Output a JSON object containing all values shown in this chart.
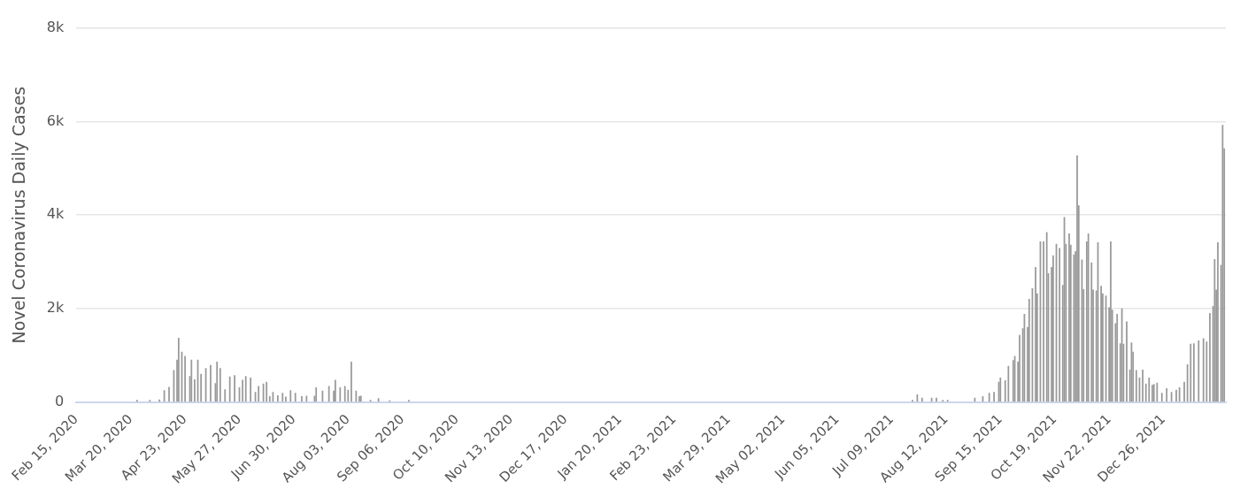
{
  "chart_data": {
    "type": "bar",
    "ylabel": "Novel Coronavirus Daily Cases",
    "color": "#999999",
    "grid": "y",
    "legend": false,
    "xlim": [
      "2020-02-15",
      "2022-02-03"
    ],
    "xticks": [
      {
        "value": "2020-02-15",
        "label": "Feb 15, 2020"
      },
      {
        "value": "2020-03-20",
        "label": "Mar 20, 2020"
      },
      {
        "value": "2020-04-23",
        "label": "Apr 23, 2020"
      },
      {
        "value": "2020-05-27",
        "label": "May 27, 2020"
      },
      {
        "value": "2020-06-30",
        "label": "Jun 30, 2020"
      },
      {
        "value": "2020-08-03",
        "label": "Aug 03, 2020"
      },
      {
        "value": "2020-09-06",
        "label": "Sep 06, 2020"
      },
      {
        "value": "2020-10-10",
        "label": "Oct 10, 2020"
      },
      {
        "value": "2020-11-13",
        "label": "Nov 13, 2020"
      },
      {
        "value": "2020-12-17",
        "label": "Dec 17, 2020"
      },
      {
        "value": "2021-01-20",
        "label": "Jan 20, 2021"
      },
      {
        "value": "2021-02-23",
        "label": "Feb 23, 2021"
      },
      {
        "value": "2021-03-29",
        "label": "Mar 29, 2021"
      },
      {
        "value": "2021-05-02",
        "label": "May 02, 2021"
      },
      {
        "value": "2021-06-05",
        "label": "Jun 05, 2021"
      },
      {
        "value": "2021-07-09",
        "label": "Jul 09, 2021"
      },
      {
        "value": "2021-08-12",
        "label": "Aug 12, 2021"
      },
      {
        "value": "2021-09-15",
        "label": "Sep 15, 2021"
      },
      {
        "value": "2021-10-19",
        "label": "Oct 19, 2021"
      },
      {
        "value": "2021-11-22",
        "label": "Nov 22, 2021"
      },
      {
        "value": "2021-12-26",
        "label": "Dec 26, 2021"
      }
    ],
    "ylim": [
      0,
      8000
    ],
    "yticks": [
      {
        "value": 0,
        "label": "0"
      },
      {
        "value": 2000,
        "label": "2k"
      },
      {
        "value": 4000,
        "label": "4k"
      },
      {
        "value": 6000,
        "label": "6k"
      },
      {
        "value": 8000,
        "label": "8k"
      }
    ],
    "x": [
      "2020-03-24",
      "2020-04-01",
      "2020-04-07",
      "2020-04-10",
      "2020-04-13",
      "2020-04-16",
      "2020-04-18",
      "2020-04-19",
      "2020-04-21",
      "2020-04-23",
      "2020-04-26",
      "2020-04-27",
      "2020-04-29",
      "2020-05-01",
      "2020-05-03",
      "2020-05-06",
      "2020-05-09",
      "2020-05-12",
      "2020-05-13",
      "2020-05-15",
      "2020-05-18",
      "2020-05-21",
      "2020-05-24",
      "2020-05-27",
      "2020-05-29",
      "2020-05-31",
      "2020-06-03",
      "2020-06-06",
      "2020-06-08",
      "2020-06-11",
      "2020-06-13",
      "2020-06-15",
      "2020-06-17",
      "2020-06-20",
      "2020-06-23",
      "2020-06-25",
      "2020-06-28",
      "2020-07-01",
      "2020-07-05",
      "2020-07-08",
      "2020-07-13",
      "2020-07-14",
      "2020-07-18",
      "2020-07-22",
      "2020-07-25",
      "2020-07-26",
      "2020-07-29",
      "2020-08-01",
      "2020-08-03",
      "2020-08-05",
      "2020-08-08",
      "2020-08-10",
      "2020-08-11",
      "2020-08-17",
      "2020-08-22",
      "2020-08-29",
      "2020-09-10",
      "2021-07-22",
      "2021-07-25",
      "2021-07-28",
      "2021-08-03",
      "2021-08-06",
      "2021-08-10",
      "2021-08-13",
      "2021-08-30",
      "2021-09-04",
      "2021-09-08",
      "2021-09-11",
      "2021-09-14",
      "2021-09-15",
      "2021-09-18",
      "2021-09-20",
      "2021-09-23",
      "2021-09-24",
      "2021-09-26",
      "2021-09-27",
      "2021-09-29",
      "2021-09-30",
      "2021-10-02",
      "2021-10-03",
      "2021-10-05",
      "2021-10-07",
      "2021-10-08",
      "2021-10-10",
      "2021-10-12",
      "2021-10-14",
      "2021-10-15",
      "2021-10-17",
      "2021-10-18",
      "2021-10-20",
      "2021-10-22",
      "2021-10-24",
      "2021-10-25",
      "2021-10-26",
      "2021-10-28",
      "2021-10-29",
      "2021-10-31",
      "2021-11-01",
      "2021-11-02",
      "2021-11-03",
      "2021-11-05",
      "2021-11-06",
      "2021-11-08",
      "2021-11-09",
      "2021-11-11",
      "2021-11-12",
      "2021-11-14",
      "2021-11-15",
      "2021-11-17",
      "2021-11-18",
      "2021-11-20",
      "2021-11-22",
      "2021-11-23",
      "2021-11-24",
      "2021-11-26",
      "2021-11-27",
      "2021-11-29",
      "2021-11-30",
      "2021-12-01",
      "2021-12-03",
      "2021-12-05",
      "2021-12-06",
      "2021-12-07",
      "2021-12-09",
      "2021-12-11",
      "2021-12-13",
      "2021-12-15",
      "2021-12-17",
      "2021-12-19",
      "2021-12-20",
      "2021-12-22",
      "2021-12-25",
      "2021-12-28",
      "2021-12-31",
      "2022-01-03",
      "2022-01-05",
      "2022-01-08",
      "2022-01-10",
      "2022-01-12",
      "2022-01-14",
      "2022-01-17",
      "2022-01-20",
      "2022-01-22",
      "2022-01-24",
      "2022-01-26",
      "2022-01-27",
      "2022-01-28",
      "2022-01-29",
      "2022-01-31",
      "2022-02-01",
      "2022-02-02"
    ],
    "values": [
      40,
      40,
      50,
      250,
      320,
      680,
      900,
      1370,
      1070,
      980,
      550,
      900,
      480,
      900,
      600,
      720,
      790,
      400,
      860,
      720,
      270,
      540,
      570,
      310,
      470,
      550,
      520,
      210,
      340,
      390,
      430,
      120,
      210,
      140,
      190,
      110,
      250,
      190,
      120,
      130,
      130,
      310,
      240,
      340,
      240,
      470,
      310,
      340,
      260,
      860,
      240,
      120,
      130,
      40,
      80,
      30,
      40,
      40,
      160,
      90,
      90,
      90,
      40,
      40,
      90,
      120,
      190,
      210,
      430,
      520,
      460,
      770,
      890,
      980,
      860,
      1430,
      1570,
      1880,
      1600,
      2200,
      2430,
      2880,
      2320,
      3430,
      3430,
      3630,
      2750,
      2880,
      3130,
      3380,
      3290,
      2500,
      3950,
      3380,
      3600,
      3360,
      3150,
      3220,
      5270,
      4200,
      3040,
      2410,
      3430,
      3600,
      2980,
      2400,
      2380,
      3410,
      2480,
      2320,
      2270,
      2020,
      3430,
      1970,
      1680,
      1880,
      1250,
      2000,
      1240,
      1720,
      690,
      1270,
      1070,
      680,
      520,
      690,
      390,
      520,
      360,
      380,
      410,
      190,
      290,
      210,
      260,
      310,
      430,
      800,
      1240,
      1250,
      1310,
      1360,
      1290,
      1900,
      2050,
      3050,
      2400,
      3410,
      2930,
      5920,
      5420
    ]
  }
}
